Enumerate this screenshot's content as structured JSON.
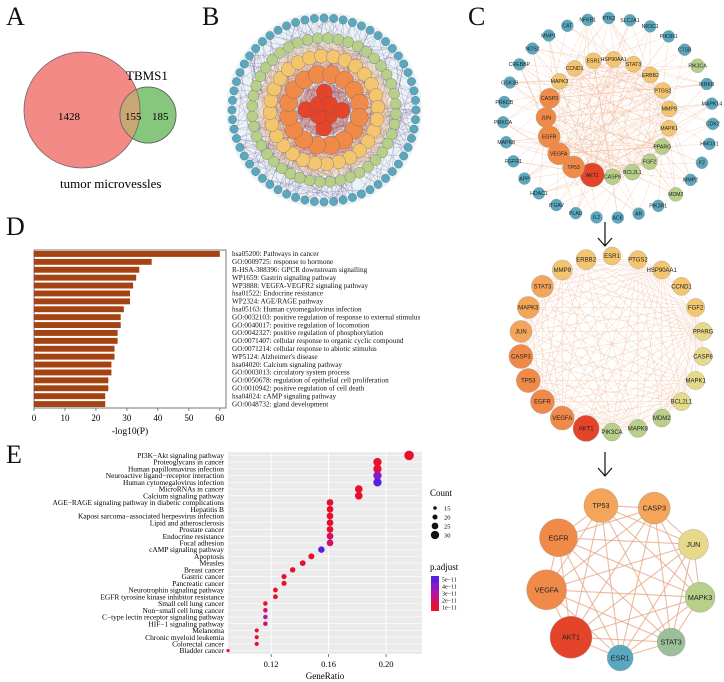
{
  "panels": {
    "a": "A",
    "b": "B",
    "c": "C",
    "d": "D",
    "e": "E"
  },
  "venn": {
    "left_label": "tumor microvessles",
    "right_label": "TBMS1",
    "left_only": "1428",
    "overlap": "155",
    "right_only": "185",
    "colors": {
      "left": "#f48a86",
      "right": "#86c77d"
    }
  },
  "network_b": {
    "layers": [
      {
        "name": "outer",
        "color": "#5aa8c0",
        "count": 60
      },
      {
        "name": "ring2",
        "color": "#b8cf8a",
        "count": 44
      },
      {
        "name": "ring3",
        "color": "#f4c56f",
        "count": 28
      },
      {
        "name": "ring4",
        "color": "#f08a48",
        "count": 16
      },
      {
        "name": "core",
        "color": "#e4442a",
        "count": 8
      }
    ],
    "edge_color": "#6a4a9a"
  },
  "network_c1": {
    "nodes": [
      {
        "label": "MMP1",
        "color": "#5aa8c0",
        "size": 6
      },
      {
        "label": "CAT",
        "color": "#5aa8c0",
        "size": 6
      },
      {
        "label": "NFKB1",
        "color": "#5aa8c0",
        "size": 6
      },
      {
        "label": "PTK2",
        "color": "#5aa8c0",
        "size": 6
      },
      {
        "label": "SLC2A1",
        "color": "#5aa8c0",
        "size": 6
      },
      {
        "label": "NR3C1",
        "color": "#5aa8c0",
        "size": 6
      },
      {
        "label": "PIK3R1",
        "color": "#5aa8c0",
        "size": 6
      },
      {
        "label": "CTSB",
        "color": "#5aa8c0",
        "size": 6
      },
      {
        "label": "PIK3CA",
        "color": "#b8cf8a",
        "size": 7
      },
      {
        "label": "IKBKB",
        "color": "#5aa8c0",
        "size": 6
      },
      {
        "label": "MAPK14",
        "color": "#5aa8c0",
        "size": 6
      },
      {
        "label": "CDK2",
        "color": "#5aa8c0",
        "size": 6
      },
      {
        "label": "HMOX1",
        "color": "#5aa8c0",
        "size": 6
      },
      {
        "label": "F2",
        "color": "#5aa8c0",
        "size": 6
      },
      {
        "label": "MMP2",
        "color": "#5aa8c0",
        "size": 6
      },
      {
        "label": "MDM2",
        "color": "#b8cf8a",
        "size": 7
      },
      {
        "label": "PIK3R1",
        "color": "#5aa8c0",
        "size": 6
      },
      {
        "label": "AR",
        "color": "#5aa8c0",
        "size": 6
      },
      {
        "label": "ACE",
        "color": "#5aa8c0",
        "size": 6
      },
      {
        "label": "IL2",
        "color": "#5aa8c0",
        "size": 6
      },
      {
        "label": "PLAU",
        "color": "#5aa8c0",
        "size": 6
      },
      {
        "label": "ITGAV",
        "color": "#5aa8c0",
        "size": 6
      },
      {
        "label": "HDAC1",
        "color": "#5aa8c0",
        "size": 6
      },
      {
        "label": "APP",
        "color": "#5aa8c0",
        "size": 6
      },
      {
        "label": "FGFR1",
        "color": "#5aa8c0",
        "size": 6
      },
      {
        "label": "MAPK8",
        "color": "#5aa8c0",
        "size": 6
      },
      {
        "label": "PRKCA",
        "color": "#5aa8c0",
        "size": 6
      },
      {
        "label": "PRKCB",
        "color": "#5aa8c0",
        "size": 6
      },
      {
        "label": "GSK3B",
        "color": "#5aa8c0",
        "size": 6
      },
      {
        "label": "CREBBP",
        "color": "#5aa8c0",
        "size": 6
      },
      {
        "label": "NOS2",
        "color": "#5aa8c0",
        "size": 6
      }
    ],
    "inner": [
      {
        "label": "MAPK3",
        "color": "#f4c56f",
        "size": 8
      },
      {
        "label": "CCND1",
        "color": "#f4c56f",
        "size": 8
      },
      {
        "label": "ESR1",
        "color": "#f4c56f",
        "size": 8
      },
      {
        "label": "HSP90AA1",
        "color": "#f4c56f",
        "size": 8
      },
      {
        "label": "STAT3",
        "color": "#f4c56f",
        "size": 8
      },
      {
        "label": "ERBB2",
        "color": "#f4c56f",
        "size": 8
      },
      {
        "label": "PTGS2",
        "color": "#f4c56f",
        "size": 8
      },
      {
        "label": "MMP9",
        "color": "#f4c56f",
        "size": 8
      },
      {
        "label": "MAPK1",
        "color": "#f4c56f",
        "size": 8
      },
      {
        "label": "PPARG",
        "color": "#b8cf8a",
        "size": 8
      },
      {
        "label": "FGF2",
        "color": "#b8cf8a",
        "size": 8
      },
      {
        "label": "BCL2L1",
        "color": "#b8cf8a",
        "size": 8
      },
      {
        "label": "CASP8",
        "color": "#b8cf8a",
        "size": 8
      },
      {
        "label": "AKT1",
        "color": "#e4442a",
        "size": 12
      },
      {
        "label": "TP53",
        "color": "#f08a48",
        "size": 11
      },
      {
        "label": "VEGFA",
        "color": "#f08a48",
        "size": 11
      },
      {
        "label": "EGFR",
        "color": "#f08a48",
        "size": 11
      },
      {
        "label": "JUN",
        "color": "#f08a48",
        "size": 10
      },
      {
        "label": "CASP3",
        "color": "#f08a48",
        "size": 10
      }
    ]
  },
  "network_c2": {
    "nodes": [
      {
        "label": "ESR1",
        "color": "#f4c56f",
        "size": 9
      },
      {
        "label": "PTGS2",
        "color": "#f4c56f",
        "size": 9
      },
      {
        "label": "HSP90AA1",
        "color": "#f4c56f",
        "size": 9
      },
      {
        "label": "CCND1",
        "color": "#f4c56f",
        "size": 9
      },
      {
        "label": "FGF2",
        "color": "#f4c56f",
        "size": 9
      },
      {
        "label": "PPARG",
        "color": "#e6d98a",
        "size": 9
      },
      {
        "label": "CASP8",
        "color": "#e6d98a",
        "size": 9
      },
      {
        "label": "MAPK1",
        "color": "#e6d98a",
        "size": 9
      },
      {
        "label": "BCL2L1",
        "color": "#e6d98a",
        "size": 9
      },
      {
        "label": "MDM2",
        "color": "#b8cf8a",
        "size": 9
      },
      {
        "label": "MAPK8",
        "color": "#b8cf8a",
        "size": 9
      },
      {
        "label": "PIK3CA",
        "color": "#b8cf8a",
        "size": 9
      },
      {
        "label": "AKT1",
        "color": "#e4442a",
        "size": 13
      },
      {
        "label": "VEGFA",
        "color": "#f08a48",
        "size": 12
      },
      {
        "label": "EGFR",
        "color": "#f08a48",
        "size": 12
      },
      {
        "label": "TP53",
        "color": "#f08a48",
        "size": 12
      },
      {
        "label": "CASP3",
        "color": "#f08a48",
        "size": 12
      },
      {
        "label": "JUN",
        "color": "#f4a55a",
        "size": 11
      },
      {
        "label": "MAPK3",
        "color": "#f4a55a",
        "size": 11
      },
      {
        "label": "STAT3",
        "color": "#f4a55a",
        "size": 11
      },
      {
        "label": "MMP9",
        "color": "#f4c56f",
        "size": 10
      },
      {
        "label": "ERBB2",
        "color": "#f4c56f",
        "size": 10
      }
    ]
  },
  "network_c3": {
    "nodes": [
      {
        "label": "TP53",
        "color": "#f4a55a",
        "size": 17
      },
      {
        "label": "CASP3",
        "color": "#f4a55a",
        "size": 16
      },
      {
        "label": "JUN",
        "color": "#e6d98a",
        "size": 15
      },
      {
        "label": "MAPK3",
        "color": "#b8cf8a",
        "size": 15
      },
      {
        "label": "STAT3",
        "color": "#9cbf9a",
        "size": 14
      },
      {
        "label": "ESR1",
        "color": "#5aa8c0",
        "size": 13
      },
      {
        "label": "AKT1",
        "color": "#e4442a",
        "size": 21
      },
      {
        "label": "VEGFA",
        "color": "#f08a48",
        "size": 20
      },
      {
        "label": "EGFR",
        "color": "#f08a48",
        "size": 19
      }
    ]
  },
  "chart_data": [
    {
      "type": "bar",
      "orientation": "horizontal",
      "xlabel": "-log10(P)",
      "xlim": [
        0,
        62
      ],
      "xticks": [
        "0",
        "10",
        "20",
        "30",
        "40",
        "50",
        "60"
      ],
      "bar_color": "#a64312",
      "categories": [
        "hsa05200: Pathways in cancer",
        "GO:0009725: response to hormone",
        "R-HSA-388396: GPCR downstream signalling",
        "WP1659: Gastrin signaling pathway",
        "WP3888: VEGFA-VEGFR2 signaling pathway",
        "hsa01522: Endocrine resistance",
        "WP2324: AGE/RAGE pathway",
        "hsa05163: Human cytomegalovirus infection",
        "GO:0032103: positive regulation of response to external stimulus",
        "GO:0040017: positive regulation of locomotion",
        "GO:0042327: positive regulation of phosphorylation",
        "GO:0071407: cellular response to organic cyclic compound",
        "GO:0071214: cellular response to abiotic stimulus",
        "WP5124: Alzheimer's disease",
        "hsa04020: Calcium signaling pathway",
        "GO:0003013: circulatory system process",
        "GO:0050678: regulation of epithelial cell proliferation",
        "GO:0010942: positive regulation of cell death",
        "hsa04024: cAMP signaling pathway",
        "GO:0048732: gland development"
      ],
      "values": [
        60,
        38,
        34,
        33,
        32,
        31,
        31,
        29,
        28,
        28,
        27,
        27,
        26,
        26,
        25,
        25,
        24,
        24,
        23,
        23
      ]
    },
    {
      "type": "scatter",
      "xlabel": "GeneRatio",
      "xlim": [
        0.09,
        0.225
      ],
      "xticks": [
        0.12,
        0.16,
        0.2
      ],
      "xtick_labels": [
        "0.12",
        "0.16",
        "0.20"
      ],
      "categories": [
        "PI3K−Akt signaling pathway",
        "Proteoglycans in cancer",
        "Human papillomavirus infection",
        "Neuroactive ligand−receptor interaction",
        "Human cytomegalovirus infection",
        "MicroRNAs in cancer",
        "Calcium signaling pathway",
        "AGE−RAGE signaling pathway in diabetic complications",
        "Hepatitis B",
        "Kaposi sarcoma−associated herpesvirus infection",
        "Lipid and atherosclerosis",
        "Prostate cancer",
        "Endocrine resistance",
        "Focal adhesion",
        "cAMP signaling pathway",
        "Apoptosis",
        "Measles",
        "Breast cancer",
        "Gastric cancer",
        "Pancreatic cancer",
        "Neurotrophin signaling pathway",
        "EGFR tyrosine kinase inhibitor resistance",
        "Small cell lung cancer",
        "Non−small cell lung cancer",
        "C−type lectin receptor signaling pathway",
        "HIF−1 signaling pathway",
        "Melanoma",
        "Chronic myeloid leukemia",
        "Colorectal cancer",
        "Bladder cancer"
      ],
      "gene_ratio": [
        0.216,
        0.194,
        0.194,
        0.194,
        0.194,
        0.181,
        0.181,
        0.161,
        0.161,
        0.161,
        0.161,
        0.161,
        0.161,
        0.161,
        0.155,
        0.148,
        0.142,
        0.135,
        0.129,
        0.129,
        0.123,
        0.123,
        0.116,
        0.116,
        0.116,
        0.116,
        0.11,
        0.11,
        0.11,
        0.09
      ],
      "count": [
        34,
        30,
        30,
        30,
        30,
        28,
        28,
        25,
        25,
        25,
        25,
        25,
        25,
        25,
        24,
        23,
        22,
        21,
        20,
        20,
        19,
        19,
        18,
        18,
        18,
        18,
        17,
        17,
        17,
        14
      ],
      "p_adjust": [
        1e-11,
        1e-11,
        1e-11,
        4e-11,
        5e-11,
        1e-11,
        1e-11,
        1e-11,
        1e-11,
        1e-11,
        1e-11,
        1e-11,
        2e-11,
        2e-11,
        5e-11,
        1e-11,
        1e-11,
        1e-11,
        1e-11,
        1e-11,
        1e-11,
        1e-11,
        1e-11,
        2e-11,
        3e-11,
        2e-11,
        1e-11,
        1e-11,
        1e-11,
        1e-11
      ],
      "legend_count": {
        "title": "Count",
        "labels": [
          "15",
          "20",
          "25",
          "30"
        ]
      },
      "legend_padj": {
        "title": "p.adjust",
        "labels": [
          "5e−11",
          "4e−11",
          "3e−11",
          "2e−11",
          "1e−11"
        ],
        "colors": [
          "#5a1ee0",
          "#8a1ac8",
          "#b014a0",
          "#d0106a",
          "#e8102e"
        ]
      }
    }
  ]
}
